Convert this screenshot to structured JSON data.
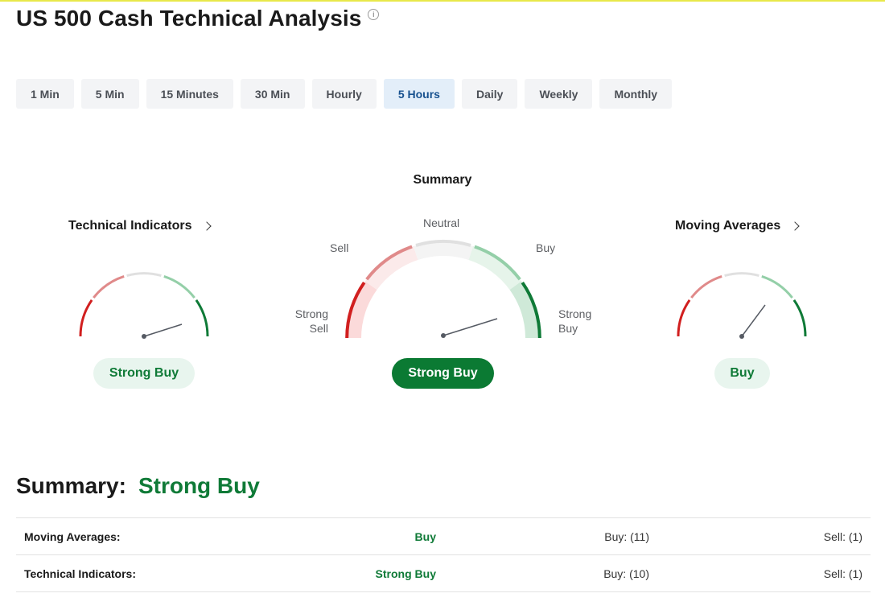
{
  "page": {
    "title": "US 500 Cash Technical Analysis",
    "info_icon": "info-icon"
  },
  "tabs": [
    {
      "label": "1 Min",
      "active": false
    },
    {
      "label": "5 Min",
      "active": false
    },
    {
      "label": "15 Minutes",
      "active": false
    },
    {
      "label": "30 Min",
      "active": false
    },
    {
      "label": "Hourly",
      "active": false
    },
    {
      "label": "5 Hours",
      "active": true
    },
    {
      "label": "Daily",
      "active": false
    },
    {
      "label": "Weekly",
      "active": false
    },
    {
      "label": "Monthly",
      "active": false
    }
  ],
  "gauges": {
    "heading": "Summary",
    "technical_indicators": {
      "title": "Technical Indicators",
      "signal": "Strong Buy"
    },
    "summary": {
      "signal": "Strong Buy",
      "scale_labels": {
        "strong_sell": [
          "Strong",
          "Sell"
        ],
        "sell": "Sell",
        "neutral": "Neutral",
        "buy": "Buy",
        "strong_buy": [
          "Strong",
          "Buy"
        ]
      }
    },
    "moving_averages": {
      "title": "Moving Averages",
      "signal": "Buy"
    },
    "colors": {
      "strong_sell": "#d11f1f",
      "sell": "#e08a8a",
      "neutral": "#e0e0e0",
      "buy": "#94cfa8",
      "strong_buy": "#0f7a37"
    }
  },
  "summary": {
    "label": "Summary:",
    "value": "Strong Buy"
  },
  "table": {
    "rows": [
      {
        "name": "Moving Averages:",
        "action": "Buy",
        "buy": "Buy: (11)",
        "sell": "Sell: (1)"
      },
      {
        "name": "Technical Indicators:",
        "action": "Strong Buy",
        "buy": "Buy: (10)",
        "sell": "Sell: (1)"
      }
    ]
  }
}
